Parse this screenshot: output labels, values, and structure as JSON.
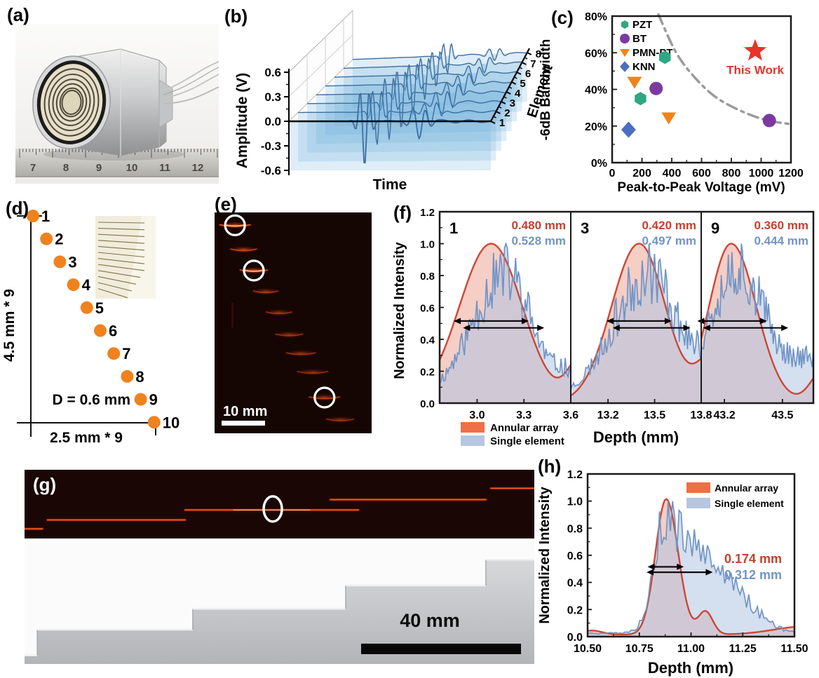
{
  "panels": {
    "a": {
      "label": "(a)",
      "ruler_numbers": [
        "7",
        "8",
        "9",
        "10",
        "11",
        "12"
      ]
    },
    "b": {
      "label": "(b)"
    },
    "c": {
      "label": "(c)"
    },
    "d": {
      "label": "(d)",
      "dot_labels": [
        "1",
        "2",
        "3",
        "4",
        "5",
        "6",
        "7",
        "8",
        "9",
        "10"
      ],
      "vertical_dim": "4.5 mm * 9",
      "horizontal_dim": "2.5 mm * 9",
      "dot_diameter": "D = 0.6 mm"
    },
    "e": {
      "label": "(e)",
      "scale_bar": "10 mm"
    },
    "f": {
      "label": "(f)"
    },
    "g": {
      "label": "(g)",
      "scale_bar": "40 mm"
    },
    "h": {
      "label": "(h)"
    }
  },
  "chart_data": [
    {
      "id": "b",
      "type": "line",
      "xlabel": "Time",
      "ylabel": "Amplitude (V)",
      "ylim": [
        -0.6,
        0.6
      ],
      "yticks": [
        "0.6",
        "0.3",
        "0.0",
        "-0.3",
        "-0.6"
      ],
      "element_axis_label": "Element",
      "element_ticks": [
        "1",
        "2",
        "3",
        "4",
        "5",
        "6",
        "7",
        "8"
      ],
      "elements": [
        {
          "element": 1,
          "delay": 0.375,
          "amplitude": 0.55
        },
        {
          "element": 2,
          "delay": 0.399,
          "amplitude": 0.4
        },
        {
          "element": 3,
          "delay": 0.423,
          "amplitude": 0.46
        },
        {
          "element": 4,
          "delay": 0.447,
          "amplitude": 0.43
        },
        {
          "element": 5,
          "delay": 0.471,
          "amplitude": 0.38
        },
        {
          "element": 6,
          "delay": 0.495,
          "amplitude": 0.31
        },
        {
          "element": 7,
          "delay": 0.519,
          "amplitude": 0.26
        },
        {
          "element": 8,
          "delay": 0.543,
          "amplitude": 0.22
        }
      ]
    },
    {
      "id": "c",
      "type": "scatter",
      "xlabel": "Peak-to-Peak Voltage (mV)",
      "ylabel": "-6dB Bandwidth",
      "xlim": [
        0,
        1200
      ],
      "xticks": [
        "0",
        "200",
        "400",
        "600",
        "800",
        "1000",
        "1200"
      ],
      "ylim_pct": [
        0,
        80
      ],
      "yticks": [
        "0%",
        "20%",
        "40%",
        "60%",
        "80%"
      ],
      "series": [
        {
          "name": "PZT",
          "marker": "hexagon",
          "color": "#2EA884",
          "points": [
            [
              354,
              57.5
            ],
            [
              190,
              35
            ]
          ]
        },
        {
          "name": "BT",
          "marker": "circle",
          "color": "#7C3AA0",
          "points": [
            [
              295,
              40.5
            ],
            [
              1055,
              23
            ]
          ]
        },
        {
          "name": "PMN-PT",
          "marker": "triangle-down",
          "color": "#EF8418",
          "points": [
            [
              150,
              44
            ],
            [
              380,
              24.5
            ]
          ]
        },
        {
          "name": "KNN",
          "marker": "diamond",
          "color": "#4B6EC5",
          "points": [
            [
              110,
              18
            ]
          ]
        }
      ],
      "highlight": {
        "name": "This Work",
        "marker": "star",
        "color": "#E8332B",
        "point": [
          960,
          61
        ]
      },
      "trend_curve": {
        "style": "dash-dot",
        "color": "#9B9B9B",
        "points": [
          [
            310,
            81
          ],
          [
            430,
            60
          ],
          [
            560,
            46
          ],
          [
            709,
            35
          ],
          [
            900,
            27
          ],
          [
            1050,
            23
          ],
          [
            1200,
            21
          ]
        ]
      }
    },
    {
      "id": "f",
      "type": "area",
      "ylabel": "Normalized Intensity",
      "xlabel": "Depth (mm)",
      "ylim": [
        0,
        1.2
      ],
      "yticks": [
        "0.0",
        "0.2",
        "0.4",
        "0.6",
        "0.8",
        "1.0",
        "1.2"
      ],
      "legend": [
        {
          "name": "Annular array",
          "color": "#ED7046"
        },
        {
          "name": "Single element",
          "color": "#B7C5DF"
        }
      ],
      "line_colors": {
        "annular": "#CE4634",
        "single": "#7094C6"
      },
      "subpanels": [
        {
          "label": "1",
          "xlim": [
            2.76,
            3.6
          ],
          "xticks": [
            "3.0",
            "3.3",
            "3.6"
          ],
          "fwhm_annular": "0.480 mm",
          "fwhm_single": "0.528 mm",
          "annular": {
            "c": 3.09,
            "sl": 0.204,
            "sr": 0.2,
            "floor": 0.0,
            "lobes": [
              {
                "c": 3.68,
                "a": 0.3,
                "s": 0.09
              }
            ]
          },
          "single": {
            "c": 3.18,
            "sl": 0.21,
            "sr": 0.17,
            "floor": 0.05,
            "noise": 0.5,
            "seed": 11,
            "lobes": [
              {
                "c": 3.6,
                "a": 0.18,
                "s": 0.09
              }
            ]
          },
          "arrows": [
            {
              "x1": 2.85,
              "x2": 3.33,
              "y": 0.515
            },
            {
              "x1": 2.91,
              "x2": 3.43,
              "y": 0.472
            }
          ]
        },
        {
          "label": "3",
          "xlim": [
            12.96,
            13.8
          ],
          "xticks": [
            "13.2",
            "13.5",
            "13.8"
          ],
          "fwhm_annular": "0.420 mm",
          "fwhm_single": "0.497 mm",
          "annular": {
            "c": 13.4,
            "sl": 0.178,
            "sr": 0.17,
            "floor": 0.0,
            "lobes": [
              {
                "c": 13.88,
                "a": 0.3,
                "s": 0.1
              }
            ]
          },
          "single": {
            "c": 13.47,
            "sl": 0.23,
            "sr": 0.15,
            "floor": 0.04,
            "noise": 0.5,
            "seed": 23,
            "lobes": [
              {
                "c": 13.8,
                "a": 0.3,
                "s": 0.12
              }
            ]
          },
          "arrows": [
            {
              "x1": 13.19,
              "x2": 13.61,
              "y": 0.515
            },
            {
              "x1": 13.23,
              "x2": 13.73,
              "y": 0.472
            }
          ]
        },
        {
          "label": "9",
          "xlim": [
            43.08,
            43.66
          ],
          "xticks": [
            "43.2",
            "43.5"
          ],
          "fwhm_annular": "0.360 mm",
          "fwhm_single": "0.444 mm",
          "annular": {
            "c": 43.235,
            "sl": 0.115,
            "sr": 0.13,
            "floor": 0.0,
            "lobes": [
              {
                "c": 43.72,
                "a": 0.22,
                "s": 0.07
              }
            ]
          },
          "single": {
            "c": 43.27,
            "sl": 0.15,
            "sr": 0.14,
            "floor": 0.05,
            "noise": 0.5,
            "seed": 37,
            "lobes": [
              {
                "c": 43.66,
                "a": 0.28,
                "s": 0.12
              }
            ]
          },
          "arrows": [
            {
              "x1": 43.06,
              "x2": 43.42,
              "y": 0.515
            },
            {
              "x1": 43.09,
              "x2": 43.53,
              "y": 0.472
            }
          ]
        }
      ]
    },
    {
      "id": "h",
      "type": "area",
      "ylabel": "Normalized Intensity",
      "xlabel": "Depth (mm)",
      "ylim": [
        0,
        1.2
      ],
      "yticks": [
        "0.0",
        "0.2",
        "0.4",
        "0.6",
        "0.8",
        "1.0",
        "1.2"
      ],
      "xlim": [
        10.5,
        11.5
      ],
      "xticks": [
        "10.50",
        "10.75",
        "11.00",
        "11.25",
        "11.50"
      ],
      "legend": [
        {
          "name": "Annular array",
          "color": "#ED7046"
        },
        {
          "name": "Single element",
          "color": "#B7C5DF"
        }
      ],
      "line_colors": {
        "annular": "#CE4634",
        "single": "#7094C6"
      },
      "fwhm_annular": "0.174 mm",
      "fwhm_single": "0.312 mm",
      "annular": {
        "c": 10.88,
        "sl": 0.052,
        "sr": 0.058,
        "floor": 0.015,
        "lobes": [
          {
            "c": 11.07,
            "a": 0.17,
            "s": 0.035
          },
          {
            "c": 11.55,
            "a": 0.06,
            "s": 0.15
          },
          {
            "c": 10.52,
            "a": 0.03,
            "s": 0.05
          }
        ]
      },
      "single": {
        "c": 10.975,
        "sl": 0.09,
        "sr": 0.14,
        "floor": 0.04,
        "noise": 0.45,
        "seed": 5,
        "lobes": [
          {
            "c": 10.86,
            "a": 0.85,
            "s": 0.05
          },
          {
            "c": 11.17,
            "a": 0.3,
            "s": 0.1
          },
          {
            "c": 11.32,
            "a": 0.12,
            "s": 0.08
          }
        ]
      },
      "arrows": [
        {
          "x1": 10.79,
          "x2": 10.965,
          "y": 0.515
        },
        {
          "x1": 10.785,
          "x2": 11.105,
          "y": 0.475
        }
      ],
      "value_labels": {
        "annular_xy": [
          11.3,
          0.575
        ],
        "single_xy": [
          11.3,
          0.455
        ]
      }
    },
    {
      "id": "e",
      "type": "image-annotations",
      "scale_bar": "10 mm",
      "echoes": [
        {
          "x": 0.13,
          "y": 0.055,
          "w": 0.2,
          "b": 1.0,
          "circled": true
        },
        {
          "x": 0.185,
          "y": 0.165,
          "w": 0.17,
          "b": 0.7,
          "circled": false
        },
        {
          "x": 0.25,
          "y": 0.26,
          "w": 0.18,
          "b": 0.85,
          "circled": true
        },
        {
          "x": 0.325,
          "y": 0.355,
          "w": 0.16,
          "b": 0.55,
          "circled": false
        },
        {
          "x": 0.41,
          "y": 0.45,
          "w": 0.17,
          "b": 0.5,
          "circled": false
        },
        {
          "x": 0.475,
          "y": 0.55,
          "w": 0.18,
          "b": 0.5,
          "circled": false
        },
        {
          "x": 0.55,
          "y": 0.635,
          "w": 0.19,
          "b": 0.5,
          "circled": false
        },
        {
          "x": 0.625,
          "y": 0.72,
          "w": 0.2,
          "b": 0.45,
          "circled": false
        },
        {
          "x": 0.7,
          "y": 0.835,
          "w": 0.2,
          "b": 0.6,
          "circled": true
        },
        {
          "x": 0.8,
          "y": 0.935,
          "w": 0.18,
          "b": 0.45,
          "circled": false
        }
      ]
    },
    {
      "id": "g",
      "type": "image-annotations",
      "scale_bar": "40 mm",
      "echo_lines": [
        {
          "x1": 0.0,
          "x2": 0.035,
          "y": 0.86
        },
        {
          "x1": 0.045,
          "x2": 0.315,
          "y": 0.73
        },
        {
          "x1": 0.315,
          "x2": 0.655,
          "y": 0.585
        },
        {
          "x1": 0.6,
          "x2": 0.905,
          "y": 0.435
        },
        {
          "x1": 0.915,
          "x2": 1.0,
          "y": 0.27
        }
      ],
      "circle": {
        "x": 0.487,
        "y": 0.57
      },
      "steps": [
        [
          0,
          0.93
        ],
        [
          0.025,
          0.93
        ],
        [
          0.025,
          0.72
        ],
        [
          0.33,
          0.72
        ],
        [
          0.33,
          0.55
        ],
        [
          0.63,
          0.55
        ],
        [
          0.63,
          0.36
        ],
        [
          0.905,
          0.36
        ],
        [
          0.905,
          0.15
        ],
        [
          1.0,
          0.15
        ]
      ]
    }
  ]
}
